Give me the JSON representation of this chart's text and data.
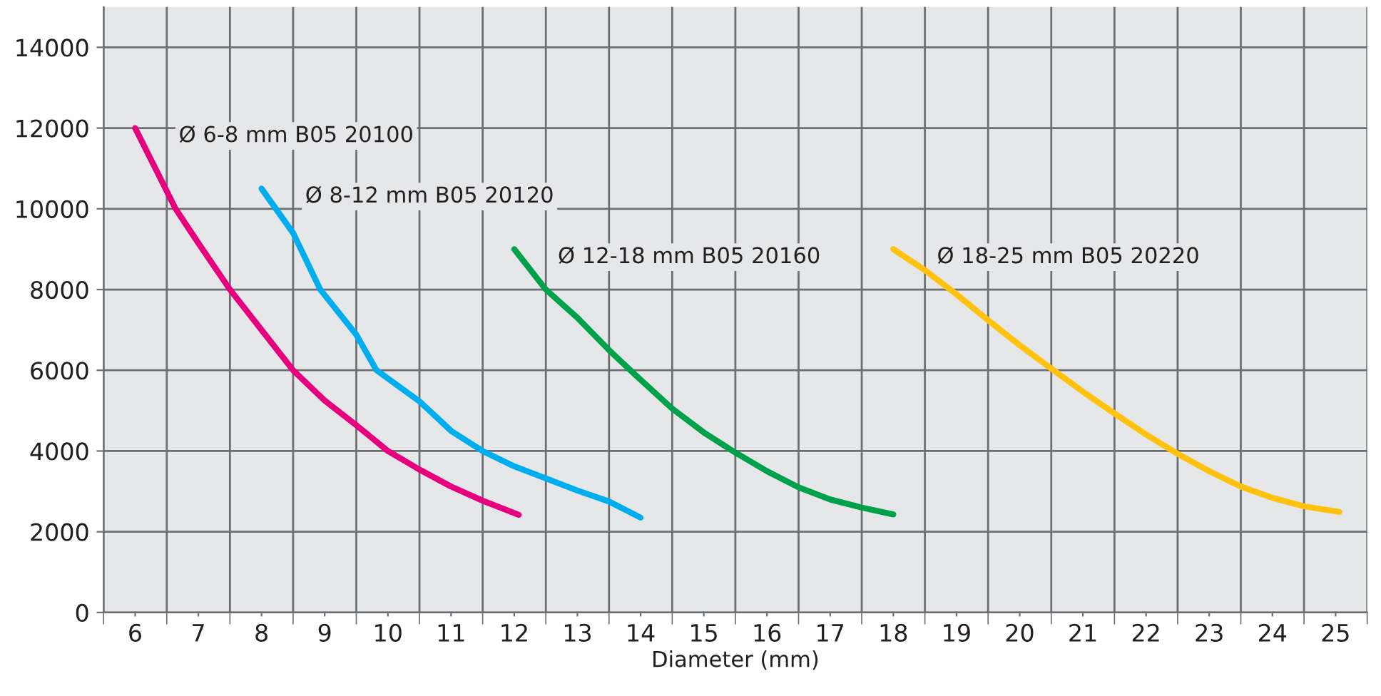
{
  "chart_data": {
    "type": "line",
    "xlabel": "Diameter (mm)",
    "xlim": [
      5.5,
      25.5
    ],
    "xticks": [
      {
        "value": 5.5,
        "label": null
      },
      6,
      {
        "value": 6.5,
        "label": null
      },
      7,
      {
        "value": 7.5,
        "label": null
      },
      8,
      {
        "value": 8.5,
        "label": null
      },
      9,
      {
        "value": 9.5,
        "label": null
      },
      10,
      {
        "value": 10.5,
        "label": null
      },
      11,
      {
        "value": 11.5,
        "label": null
      },
      12,
      {
        "value": 12.5,
        "label": null
      },
      13,
      {
        "value": 13.5,
        "label": null
      },
      14,
      {
        "value": 14.5,
        "label": null
      },
      15,
      {
        "value": 15.5,
        "label": null
      },
      16,
      {
        "value": 16.5,
        "label": null
      },
      17,
      {
        "value": 17.5,
        "label": null
      },
      18,
      {
        "value": 18.5,
        "label": null
      },
      19,
      {
        "value": 19.5,
        "label": null
      },
      20,
      {
        "value": 20.5,
        "label": null
      },
      21,
      {
        "value": 21.5,
        "label": null
      },
      22,
      {
        "value": 22.5,
        "label": null
      },
      23,
      {
        "value": 23.5,
        "label": null
      },
      24,
      {
        "value": 24.5,
        "label": null
      },
      25,
      {
        "value": 25.5,
        "label": null
      }
    ],
    "ylim": [
      0,
      15000
    ],
    "yticks": [
      0,
      2000,
      4000,
      6000,
      8000,
      10000,
      12000,
      14000
    ],
    "grid": true,
    "legend": false,
    "marker": "none",
    "line_style": "solid",
    "series": [
      {
        "name": "Ø 6-8 mm B05 20100",
        "color": "#e6007e",
        "x": [
          6,
          6.64,
          7,
          7.5,
          8,
          8.5,
          9,
          9.5,
          10,
          10.5,
          11,
          11.5,
          12.07
        ],
        "values": [
          12000,
          10000,
          9150,
          8000,
          7000,
          6000,
          5250,
          4640,
          4000,
          3540,
          3120,
          2770,
          2420
        ]
      },
      {
        "name": "Ø 8-12 mm B05 20120",
        "color": "#00aeef",
        "x": [
          8,
          8.5,
          8.93,
          9.5,
          9.82,
          10.5,
          11,
          11.5,
          12,
          12.5,
          13,
          13.5,
          14
        ],
        "values": [
          10500,
          9400,
          8000,
          6880,
          6000,
          5230,
          4500,
          4000,
          3620,
          3320,
          3020,
          2750,
          2350
        ]
      },
      {
        "name": "Ø 12-18 mm B05 20160",
        "color": "#00a14b",
        "x": [
          12,
          12.5,
          13,
          13.5,
          13.92,
          14.5,
          15,
          15.5,
          16,
          16.5,
          17,
          17.5,
          18
        ],
        "values": [
          9000,
          8000,
          7300,
          6500,
          5880,
          5050,
          4460,
          3960,
          3500,
          3100,
          2800,
          2600,
          2430
        ]
      },
      {
        "name": "Ø 18-25 mm B05 20220",
        "color": "#ffc20e",
        "x": [
          18,
          18.5,
          19,
          19.5,
          20,
          20.5,
          21,
          21.5,
          22,
          22.5,
          23,
          23.5,
          24,
          24.5,
          25.06
        ],
        "values": [
          9000,
          8480,
          7880,
          7240,
          6620,
          6040,
          5470,
          4930,
          4410,
          3930,
          3500,
          3120,
          2840,
          2630,
          2490
        ]
      }
    ]
  }
}
